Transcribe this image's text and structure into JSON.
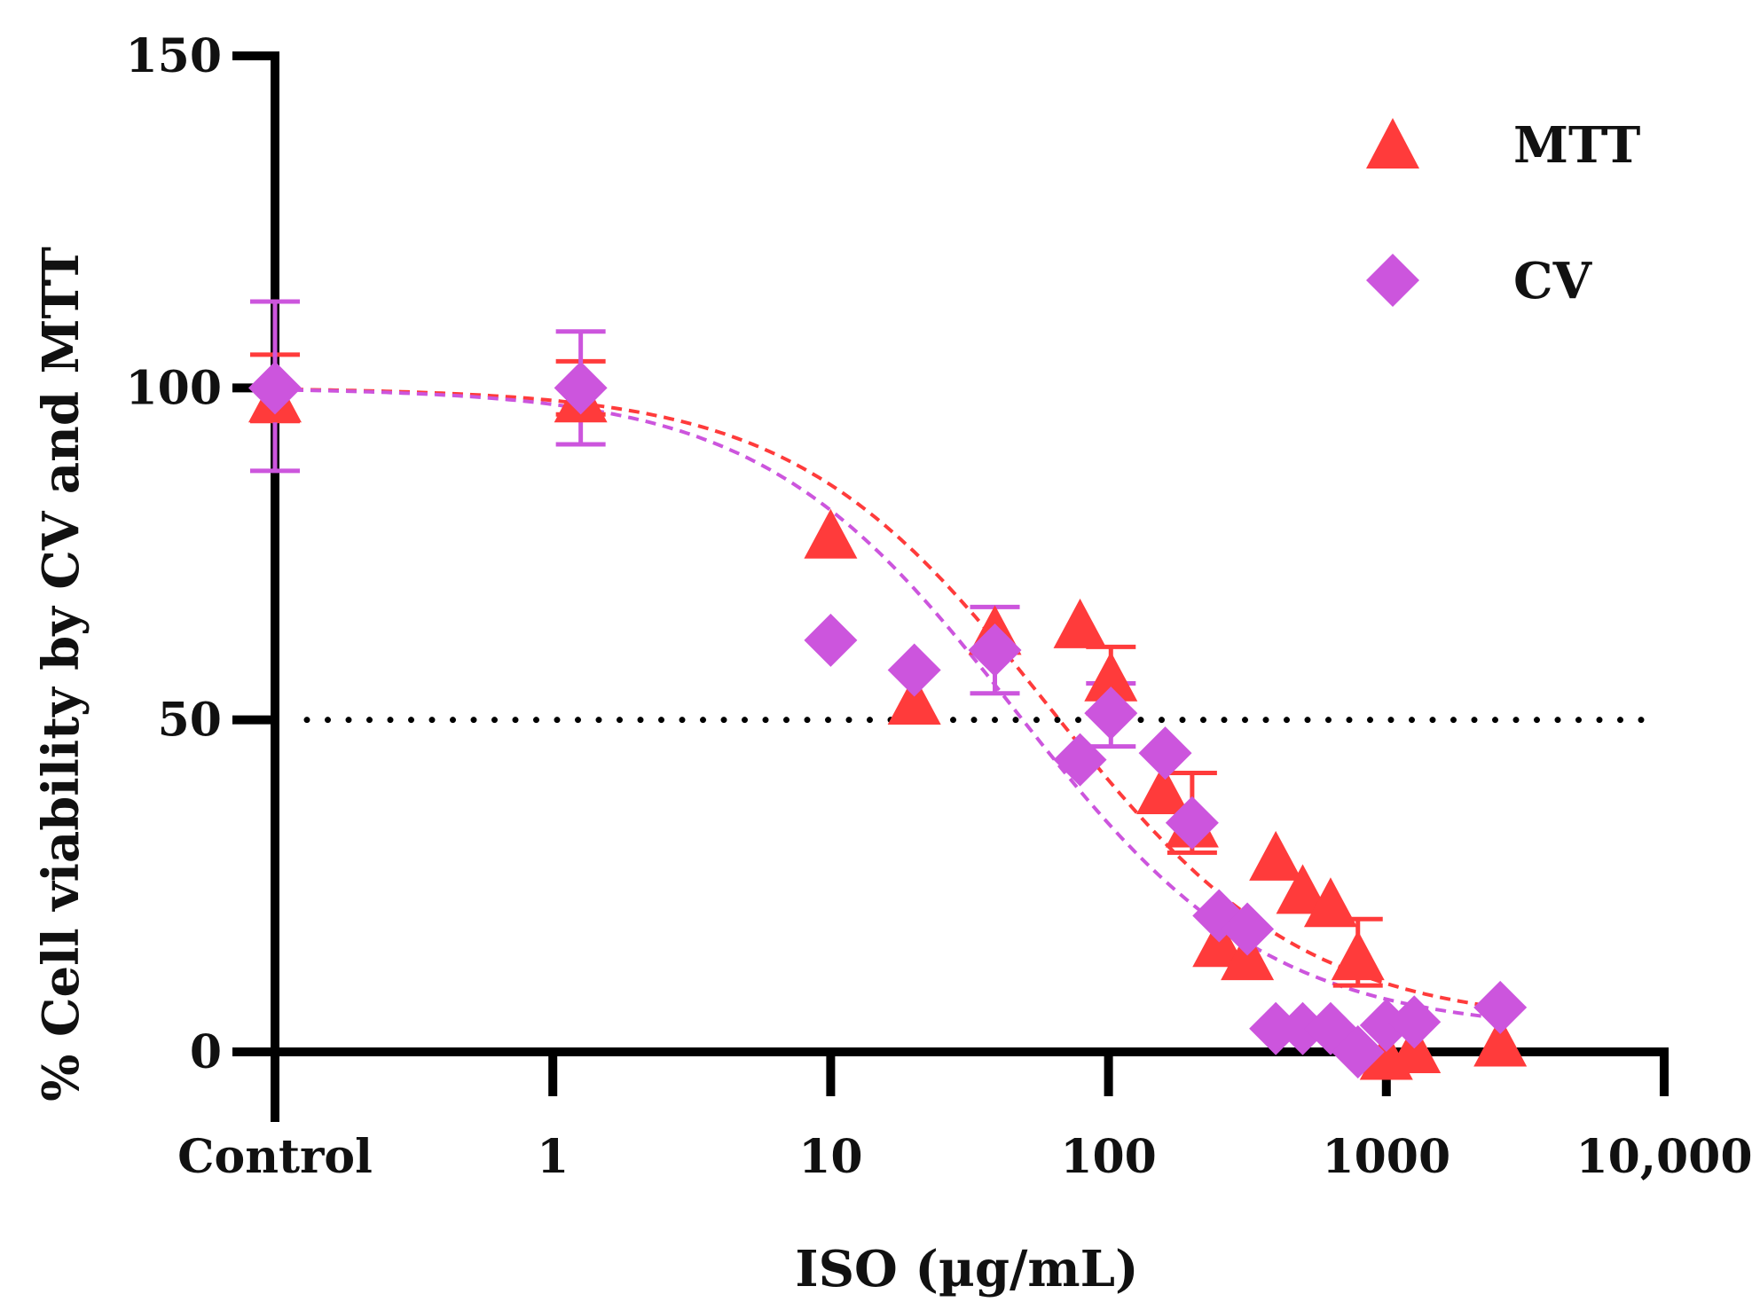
{
  "chart_data": {
    "type": "scatter",
    "title": "",
    "xlabel": "ISO (µg/mL)",
    "ylabel": "% Cell viability by CV and MTT",
    "xscale": "log",
    "x_tick_labels": [
      "Control",
      "1",
      "10",
      "100",
      "1000",
      "10,000"
    ],
    "y_ticks": [
      0,
      50,
      100,
      150
    ],
    "ylim": [
      0,
      150
    ],
    "xlim_log10": [
      -1,
      4
    ],
    "control_position_log10": -1,
    "reference_line": {
      "y": 50,
      "style": "dotted"
    },
    "legend": {
      "placement": "top-right",
      "entries": [
        "MTT",
        "CV"
      ]
    },
    "series": [
      {
        "name": "MTT",
        "marker": "triangle",
        "color": "#ff3b3b",
        "points": [
          {
            "x": "Control",
            "y": 98,
            "err": [
              95,
              105
            ]
          },
          {
            "x": 1.26,
            "y": 98,
            "err": [
              96,
              104
            ]
          },
          {
            "x": 10,
            "y": 77.5
          },
          {
            "x": 20,
            "y": 52.5
          },
          {
            "x": 39,
            "y": 63
          },
          {
            "x": 79,
            "y": 64
          },
          {
            "x": 102,
            "y": 56,
            "err": [
              51,
              61
            ]
          },
          {
            "x": 157,
            "y": 39
          },
          {
            "x": 200,
            "y": 34,
            "err": [
              30,
              42
            ]
          },
          {
            "x": 250,
            "y": 16
          },
          {
            "x": 316,
            "y": 14
          },
          {
            "x": 400,
            "y": 29
          },
          {
            "x": 500,
            "y": 24
          },
          {
            "x": 630,
            "y": 22
          },
          {
            "x": 790,
            "y": 14,
            "err": [
              10,
              20
            ]
          },
          {
            "x": 1000,
            "y": -1
          },
          {
            "x": 1260,
            "y": 0
          },
          {
            "x": 2570,
            "y": 1
          }
        ],
        "fit": {
          "top": 100,
          "bottom": 4,
          "ic50": 61,
          "hill": 0.95
        }
      },
      {
        "name": "CV",
        "marker": "diamond",
        "color": "#cc55dd",
        "points": [
          {
            "x": "Control",
            "y": 100,
            "err": [
              87.5,
              113
            ]
          },
          {
            "x": 1.26,
            "y": 100,
            "err": [
              91.5,
              108.5
            ]
          },
          {
            "x": 10,
            "y": 62
          },
          {
            "x": 20,
            "y": 57.5
          },
          {
            "x": 39,
            "y": 60.5,
            "err": [
              54,
              67
            ]
          },
          {
            "x": 79,
            "y": 44
          },
          {
            "x": 102,
            "y": 51,
            "err": [
              46,
              55.5
            ]
          },
          {
            "x": 160,
            "y": 45
          },
          {
            "x": 200,
            "y": 34.5
          },
          {
            "x": 250,
            "y": 20.5
          },
          {
            "x": 316,
            "y": 18.5
          },
          {
            "x": 400,
            "y": 3.5
          },
          {
            "x": 500,
            "y": 3.5
          },
          {
            "x": 630,
            "y": 3.5
          },
          {
            "x": 790,
            "y": 0
          },
          {
            "x": 1000,
            "y": 4
          },
          {
            "x": 1260,
            "y": 4.5
          },
          {
            "x": 2570,
            "y": 6.7
          }
        ],
        "fit": {
          "top": 100,
          "bottom": 3,
          "ic50": 46,
          "hill": 0.95
        }
      }
    ]
  }
}
